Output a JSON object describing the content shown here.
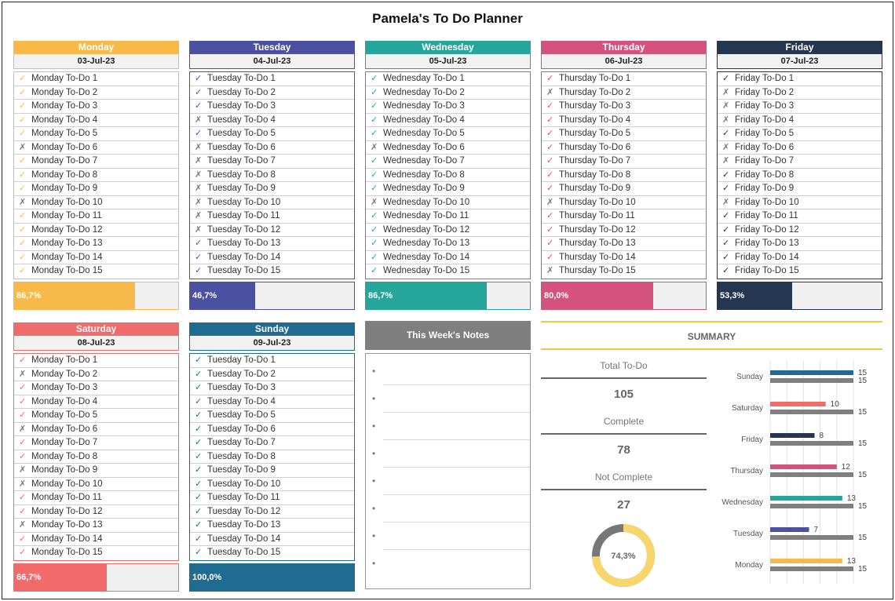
{
  "title": "Pamela's To Do Planner",
  "days": [
    {
      "name": "Monday",
      "date": "03-Jul-23",
      "color": "#f6b94a",
      "percent": "86,7%",
      "ratio": 0.867,
      "tasks": [
        "Monday To-Do 1",
        "Monday To-Do 2",
        "Monday To-Do 3",
        "Monday To-Do 4",
        "Monday To-Do 5",
        "Monday To-Do 6",
        "Monday To-Do 7",
        "Monday To-Do 8",
        "Monday To-Do 9",
        "Monday To-Do 10",
        "Monday To-Do 11",
        "Monday To-Do 12",
        "Monday To-Do 13",
        "Monday To-Do 14",
        "Monday To-Do 15"
      ],
      "done": [
        true,
        true,
        true,
        true,
        true,
        false,
        true,
        true,
        true,
        false,
        true,
        true,
        true,
        true,
        true
      ]
    },
    {
      "name": "Tuesday",
      "date": "04-Jul-23",
      "color": "#4b50a0",
      "percent": "46,7%",
      "ratio": 0.467,
      "tasks": [
        "Tuesday To-Do 1",
        "Tuesday To-Do 2",
        "Tuesday To-Do 3",
        "Tuesday To-Do 4",
        "Tuesday To-Do 5",
        "Tuesday To-Do 6",
        "Tuesday To-Do 7",
        "Tuesday To-Do 8",
        "Tuesday To-Do 9",
        "Tuesday To-Do 10",
        "Tuesday To-Do 11",
        "Tuesday To-Do 12",
        "Tuesday To-Do 13",
        "Tuesday To-Do 14",
        "Tuesday To-Do 15"
      ],
      "done": [
        true,
        true,
        true,
        false,
        true,
        false,
        false,
        false,
        false,
        false,
        false,
        false,
        true,
        true,
        true
      ]
    },
    {
      "name": "Wednesday",
      "date": "05-Jul-23",
      "color": "#26a69a",
      "percent": "86,7%",
      "ratio": 0.867,
      "tasks": [
        "Wednesday To-Do 1",
        "Wednesday To-Do 2",
        "Wednesday To-Do 3",
        "Wednesday To-Do 4",
        "Wednesday To-Do 5",
        "Wednesday To-Do 6",
        "Wednesday To-Do 7",
        "Wednesday To-Do 8",
        "Wednesday To-Do 9",
        "Wednesday To-Do 10",
        "Wednesday To-Do 11",
        "Wednesday To-Do 12",
        "Wednesday To-Do 13",
        "Wednesday To-Do 14",
        "Wednesday To-Do 15"
      ],
      "done": [
        true,
        true,
        true,
        true,
        true,
        false,
        true,
        true,
        true,
        false,
        true,
        true,
        true,
        true,
        true
      ]
    },
    {
      "name": "Thursday",
      "date": "06-Jul-23",
      "color": "#d4527e",
      "percent": "80,0%",
      "ratio": 0.8,
      "tasks": [
        "Thursday To-Do 1",
        "Thursday To-Do 2",
        "Thursday To-Do 3",
        "Thursday To-Do 4",
        "Thursday To-Do 5",
        "Thursday To-Do 6",
        "Thursday To-Do 7",
        "Thursday To-Do 8",
        "Thursday To-Do 9",
        "Thursday To-Do 10",
        "Thursday To-Do 11",
        "Thursday To-Do 12",
        "Thursday To-Do 13",
        "Thursday To-Do 14",
        "Thursday To-Do 15"
      ],
      "done": [
        true,
        false,
        true,
        true,
        true,
        true,
        true,
        true,
        true,
        false,
        true,
        true,
        true,
        true,
        false
      ]
    },
    {
      "name": "Friday",
      "date": "07-Jul-23",
      "color": "#243650",
      "percent": "53,3%",
      "ratio": 0.533,
      "tasks": [
        "Friday To-Do 1",
        "Friday To-Do 2",
        "Friday To-Do 3",
        "Friday To-Do 4",
        "Friday To-Do 5",
        "Friday To-Do 6",
        "Friday To-Do 7",
        "Friday To-Do 8",
        "Friday To-Do 9",
        "Friday To-Do 10",
        "Friday To-Do 11",
        "Friday To-Do 12",
        "Friday To-Do 13",
        "Friday To-Do 14",
        "Friday To-Do 15"
      ],
      "done": [
        true,
        false,
        false,
        false,
        true,
        false,
        false,
        true,
        true,
        false,
        true,
        true,
        true,
        true,
        true
      ]
    },
    {
      "name": "Saturday",
      "date": "08-Jul-23",
      "color": "#f26b6b",
      "percent": "66,7%",
      "ratio": 0.667,
      "tasks": [
        "Monday To-Do 1",
        "Monday To-Do 2",
        "Monday To-Do 3",
        "Monday To-Do 4",
        "Monday To-Do 5",
        "Monday To-Do 6",
        "Monday To-Do 7",
        "Monday To-Do 8",
        "Monday To-Do 9",
        "Monday To-Do 10",
        "Monday To-Do 11",
        "Monday To-Do 12",
        "Monday To-Do 13",
        "Monday To-Do 14",
        "Monday To-Do 15"
      ],
      "done": [
        true,
        false,
        true,
        true,
        true,
        false,
        true,
        true,
        false,
        false,
        true,
        true,
        false,
        true,
        true
      ]
    },
    {
      "name": "Sunday",
      "date": "09-Jul-23",
      "color": "#1f6b92",
      "percent": "100,0%",
      "ratio": 1.0,
      "tasks": [
        "Tuesday To-Do 1",
        "Tuesday To-Do 2",
        "Tuesday To-Do 3",
        "Tuesday To-Do 4",
        "Tuesday To-Do 5",
        "Tuesday To-Do 6",
        "Tuesday To-Do 7",
        "Tuesday To-Do 8",
        "Tuesday To-Do 9",
        "Tuesday To-Do 10",
        "Tuesday To-Do 11",
        "Tuesday To-Do 12",
        "Tuesday To-Do 13",
        "Tuesday To-Do 14",
        "Tuesday To-Do 15"
      ],
      "done": [
        true,
        true,
        true,
        true,
        true,
        true,
        true,
        true,
        true,
        true,
        true,
        true,
        true,
        true,
        true
      ]
    }
  ],
  "notes": {
    "title": "This Week's Notes",
    "bullet": "•",
    "line_count": 8
  },
  "summary": {
    "title": "SUMMARY",
    "total_label": "Total To-Do",
    "total_value": "105",
    "complete_label": "Complete",
    "complete_value": "78",
    "not_complete_label": "Not Complete",
    "not_complete_value": "27",
    "donut_label": "74,3%",
    "donut_ratio": 0.743,
    "donut_color": "#f9d66c",
    "donut_track_color": "#777777"
  },
  "chart_data": {
    "type": "bar",
    "orientation": "horizontal",
    "categories": [
      "Sunday",
      "Saturday",
      "Friday",
      "Thursday",
      "Wednesday",
      "Tuesday",
      "Monday"
    ],
    "series": [
      {
        "values": [
          15,
          10,
          8,
          12,
          13,
          7,
          13
        ],
        "colors": [
          "#1f6b92",
          "#f26b6b",
          "#243650",
          "#d4527e",
          "#26a69a",
          "#4b50a0",
          "#f6b94a"
        ]
      },
      {
        "values": [
          15,
          15,
          15,
          15,
          15,
          15,
          15
        ],
        "color": "#808080"
      }
    ],
    "xlim": [
      0,
      15
    ],
    "grid": true
  }
}
